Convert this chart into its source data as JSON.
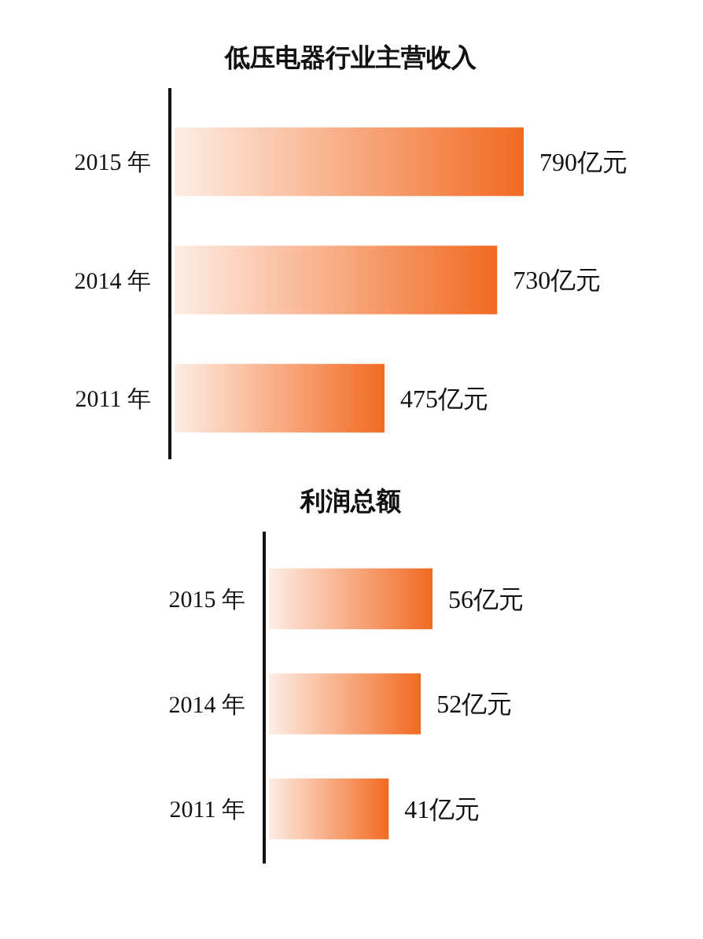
{
  "chart_data": [
    {
      "type": "bar",
      "orientation": "horizontal",
      "title": "低压电器行业主营收入",
      "categories": [
        "2015 年",
        "2014 年",
        "2011 年"
      ],
      "values": [
        790,
        730,
        475
      ],
      "value_labels": [
        "790亿元",
        "730亿元",
        "475亿元"
      ],
      "color": "#f26a22"
    },
    {
      "type": "bar",
      "orientation": "horizontal",
      "title": "利润总额",
      "categories": [
        "2015 年",
        "2014 年",
        "2011 年"
      ],
      "values": [
        56,
        52,
        41
      ],
      "value_labels": [
        "56亿元",
        "52亿元",
        "41亿元"
      ],
      "color": "#f26a22"
    }
  ]
}
